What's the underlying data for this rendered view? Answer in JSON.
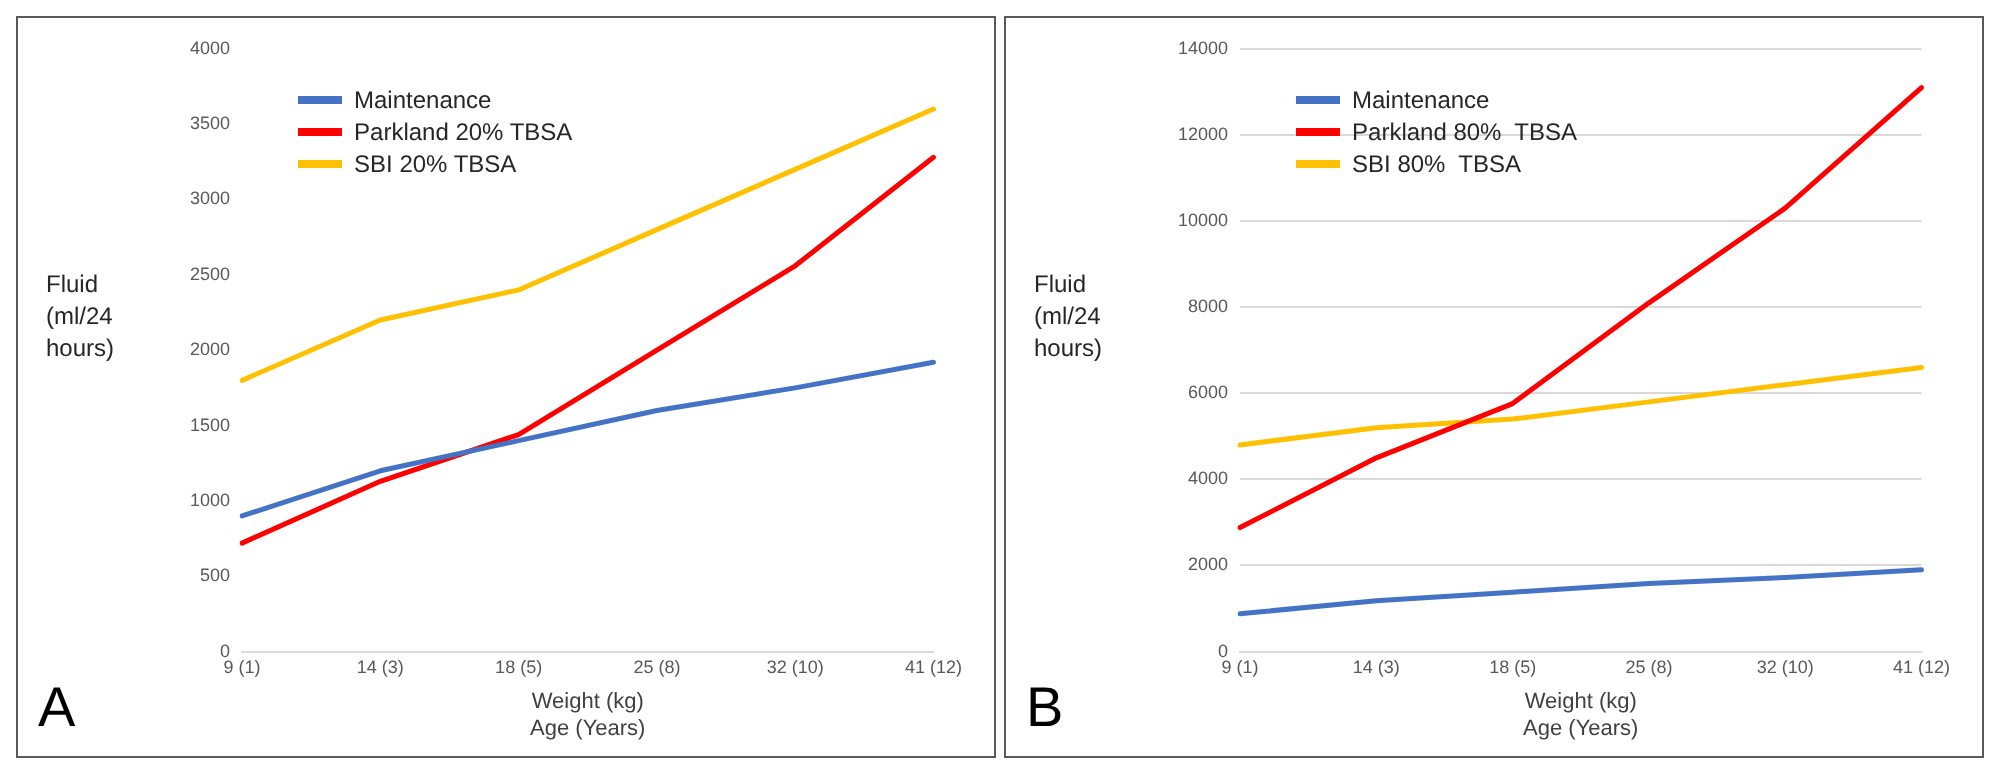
{
  "chart_data": [
    {
      "type": "line",
      "categories": [
        "9 (1)",
        "14 (3)",
        "18 (5)",
        "25 (8)",
        "32 (10)",
        "41 (12)"
      ],
      "xlabel": "Weight (kg)\nAge (Years)",
      "ylabel": "Fluid (ml/24 hours)",
      "ylim": [
        0,
        4000
      ],
      "yticks": [
        0,
        500,
        1000,
        1500,
        2000,
        2500,
        3000,
        3500,
        4000
      ],
      "grid": false,
      "legend": "top left",
      "marker": "none",
      "line_style": "solid",
      "annotations": [
        "A"
      ],
      "series": [
        {
          "name": "Maintenance",
          "color": "#4472c4",
          "values": [
            900,
            1200,
            1400,
            1600,
            1750,
            1920
          ]
        },
        {
          "name": "Parkland 20% TBSA",
          "color": "#ff0000",
          "values": [
            720,
            1130,
            1440,
            2000,
            2560,
            3280
          ]
        },
        {
          "name": "SBI 20% TBSA",
          "color": "#ffc000",
          "values": [
            1800,
            2200,
            2400,
            2800,
            3200,
            3600
          ]
        }
      ]
    },
    {
      "type": "line",
      "categories": [
        "9 (1)",
        "14 (3)",
        "18 (5)",
        "25 (8)",
        "32 (10)",
        "41 (12)"
      ],
      "xlabel": "Weight (kg)\nAge (Years)",
      "ylabel": "Fluid (ml/24 hours)",
      "ylim": [
        0,
        14000
      ],
      "yticks": [
        0,
        2000,
        4000,
        6000,
        8000,
        10000,
        12000,
        14000
      ],
      "grid": "y",
      "legend": "top left",
      "marker": "none",
      "line_style": "solid",
      "annotations": [
        "B"
      ],
      "series": [
        {
          "name": "Maintenance",
          "color": "#4472c4",
          "values": [
            880,
            1180,
            1380,
            1580,
            1720,
            1900
          ]
        },
        {
          "name": "Parkland 80%  TBSA",
          "color": "#ff0000",
          "values": [
            2880,
            4500,
            5760,
            8100,
            10300,
            13100
          ]
        },
        {
          "name": "SBI 80%  TBSA",
          "color": "#ffc000",
          "values": [
            4800,
            5200,
            5400,
            5800,
            6200,
            6600
          ]
        }
      ]
    }
  ]
}
